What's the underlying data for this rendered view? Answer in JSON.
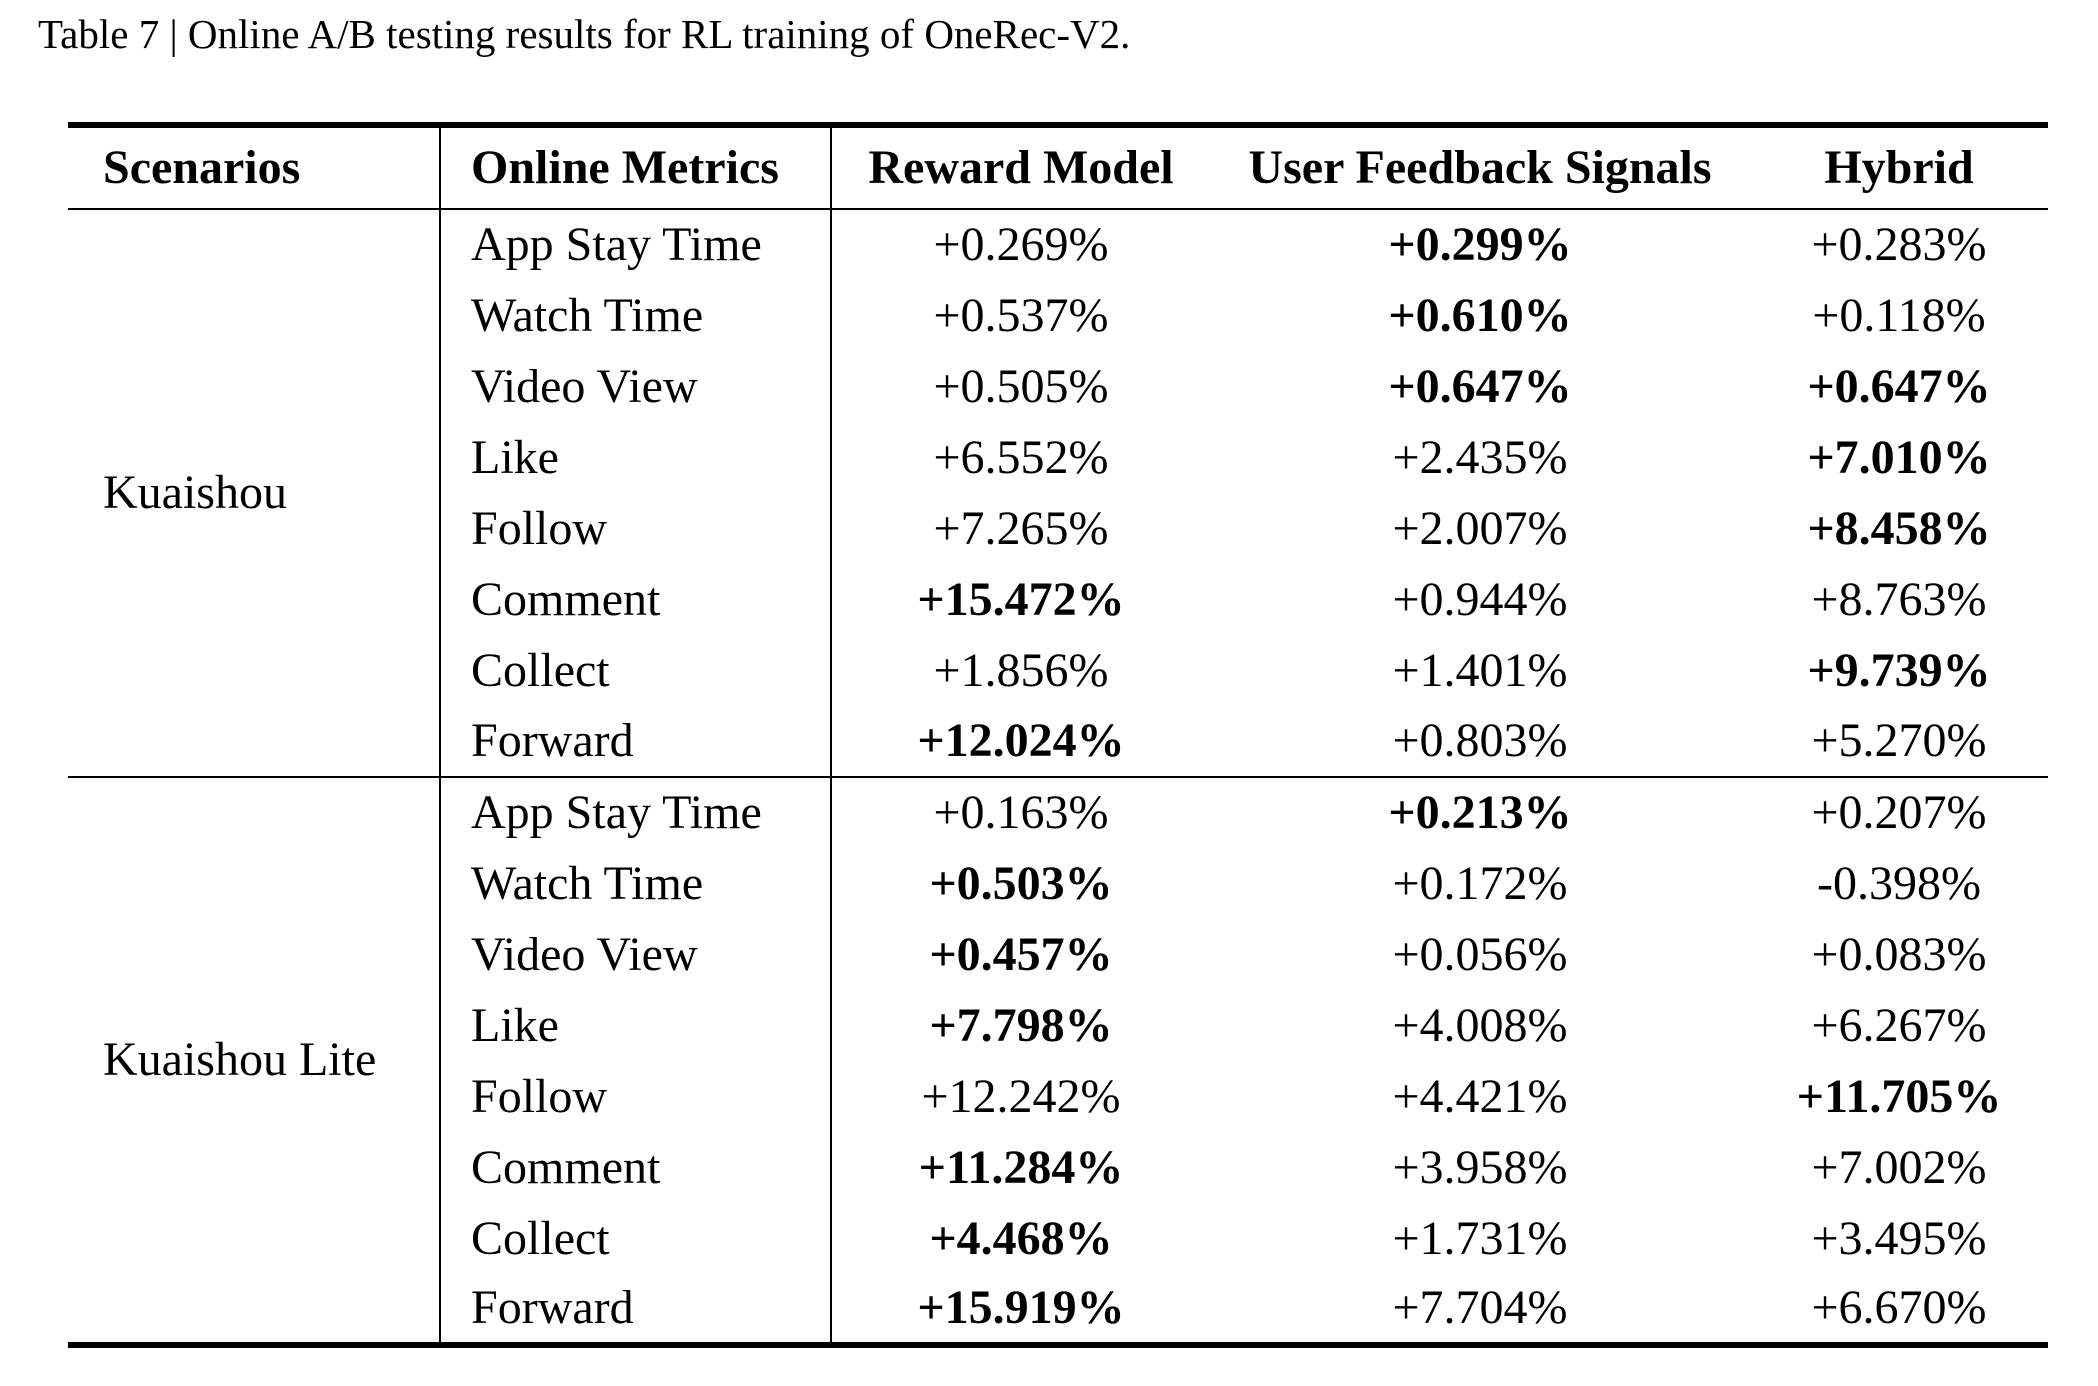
{
  "caption": "Table 7 | Online A/B testing results for RL training of OneRec-V2.",
  "colors": {
    "text": "#000000",
    "background": "#ffffff",
    "rule": "#000000"
  },
  "table": {
    "columns": [
      "Scenarios",
      "Online Metrics",
      "Reward Model",
      "User Feedback Signals",
      "Hybrid"
    ],
    "sections": [
      {
        "scenario": "Kuaishou",
        "rows": [
          {
            "metric": "App Stay Time",
            "reward_model": {
              "value": "+0.269%",
              "bold": false
            },
            "user_feedback_signals": {
              "value": "+0.299%",
              "bold": true
            },
            "hybrid": {
              "value": "+0.283%",
              "bold": false
            }
          },
          {
            "metric": "Watch Time",
            "reward_model": {
              "value": "+0.537%",
              "bold": false
            },
            "user_feedback_signals": {
              "value": "+0.610%",
              "bold": true
            },
            "hybrid": {
              "value": "+0.118%",
              "bold": false
            }
          },
          {
            "metric": "Video View",
            "reward_model": {
              "value": "+0.505%",
              "bold": false
            },
            "user_feedback_signals": {
              "value": "+0.647%",
              "bold": true
            },
            "hybrid": {
              "value": "+0.647%",
              "bold": true
            }
          },
          {
            "metric": "Like",
            "reward_model": {
              "value": "+6.552%",
              "bold": false
            },
            "user_feedback_signals": {
              "value": "+2.435%",
              "bold": false
            },
            "hybrid": {
              "value": "+7.010%",
              "bold": true
            }
          },
          {
            "metric": "Follow",
            "reward_model": {
              "value": "+7.265%",
              "bold": false
            },
            "user_feedback_signals": {
              "value": "+2.007%",
              "bold": false
            },
            "hybrid": {
              "value": "+8.458%",
              "bold": true
            }
          },
          {
            "metric": "Comment",
            "reward_model": {
              "value": "+15.472%",
              "bold": true
            },
            "user_feedback_signals": {
              "value": "+0.944%",
              "bold": false
            },
            "hybrid": {
              "value": "+8.763%",
              "bold": false
            }
          },
          {
            "metric": "Collect",
            "reward_model": {
              "value": "+1.856%",
              "bold": false
            },
            "user_feedback_signals": {
              "value": "+1.401%",
              "bold": false
            },
            "hybrid": {
              "value": "+9.739%",
              "bold": true
            }
          },
          {
            "metric": "Forward",
            "reward_model": {
              "value": "+12.024%",
              "bold": true
            },
            "user_feedback_signals": {
              "value": "+0.803%",
              "bold": false
            },
            "hybrid": {
              "value": "+5.270%",
              "bold": false
            }
          }
        ]
      },
      {
        "scenario": "Kuaishou Lite",
        "rows": [
          {
            "metric": "App Stay Time",
            "reward_model": {
              "value": "+0.163%",
              "bold": false
            },
            "user_feedback_signals": {
              "value": "+0.213%",
              "bold": true
            },
            "hybrid": {
              "value": "+0.207%",
              "bold": false
            }
          },
          {
            "metric": "Watch Time",
            "reward_model": {
              "value": "+0.503%",
              "bold": true
            },
            "user_feedback_signals": {
              "value": "+0.172%",
              "bold": false
            },
            "hybrid": {
              "value": "-0.398%",
              "bold": false
            }
          },
          {
            "metric": "Video View",
            "reward_model": {
              "value": "+0.457%",
              "bold": true
            },
            "user_feedback_signals": {
              "value": "+0.056%",
              "bold": false
            },
            "hybrid": {
              "value": "+0.083%",
              "bold": false
            }
          },
          {
            "metric": "Like",
            "reward_model": {
              "value": "+7.798%",
              "bold": true
            },
            "user_feedback_signals": {
              "value": "+4.008%",
              "bold": false
            },
            "hybrid": {
              "value": "+6.267%",
              "bold": false
            }
          },
          {
            "metric": "Follow",
            "reward_model": {
              "value": "+12.242%",
              "bold": false
            },
            "user_feedback_signals": {
              "value": "+4.421%",
              "bold": false
            },
            "hybrid": {
              "value": "+11.705%",
              "bold": true
            }
          },
          {
            "metric": "Comment",
            "reward_model": {
              "value": "+11.284%",
              "bold": true
            },
            "user_feedback_signals": {
              "value": "+3.958%",
              "bold": false
            },
            "hybrid": {
              "value": "+7.002%",
              "bold": false
            }
          },
          {
            "metric": "Collect",
            "reward_model": {
              "value": "+4.468%",
              "bold": true
            },
            "user_feedback_signals": {
              "value": "+1.731%",
              "bold": false
            },
            "hybrid": {
              "value": "+3.495%",
              "bold": false
            }
          },
          {
            "metric": "Forward",
            "reward_model": {
              "value": "+15.919%",
              "bold": true
            },
            "user_feedback_signals": {
              "value": "+7.704%",
              "bold": false
            },
            "hybrid": {
              "value": "+6.670%",
              "bold": false
            }
          }
        ]
      }
    ]
  }
}
